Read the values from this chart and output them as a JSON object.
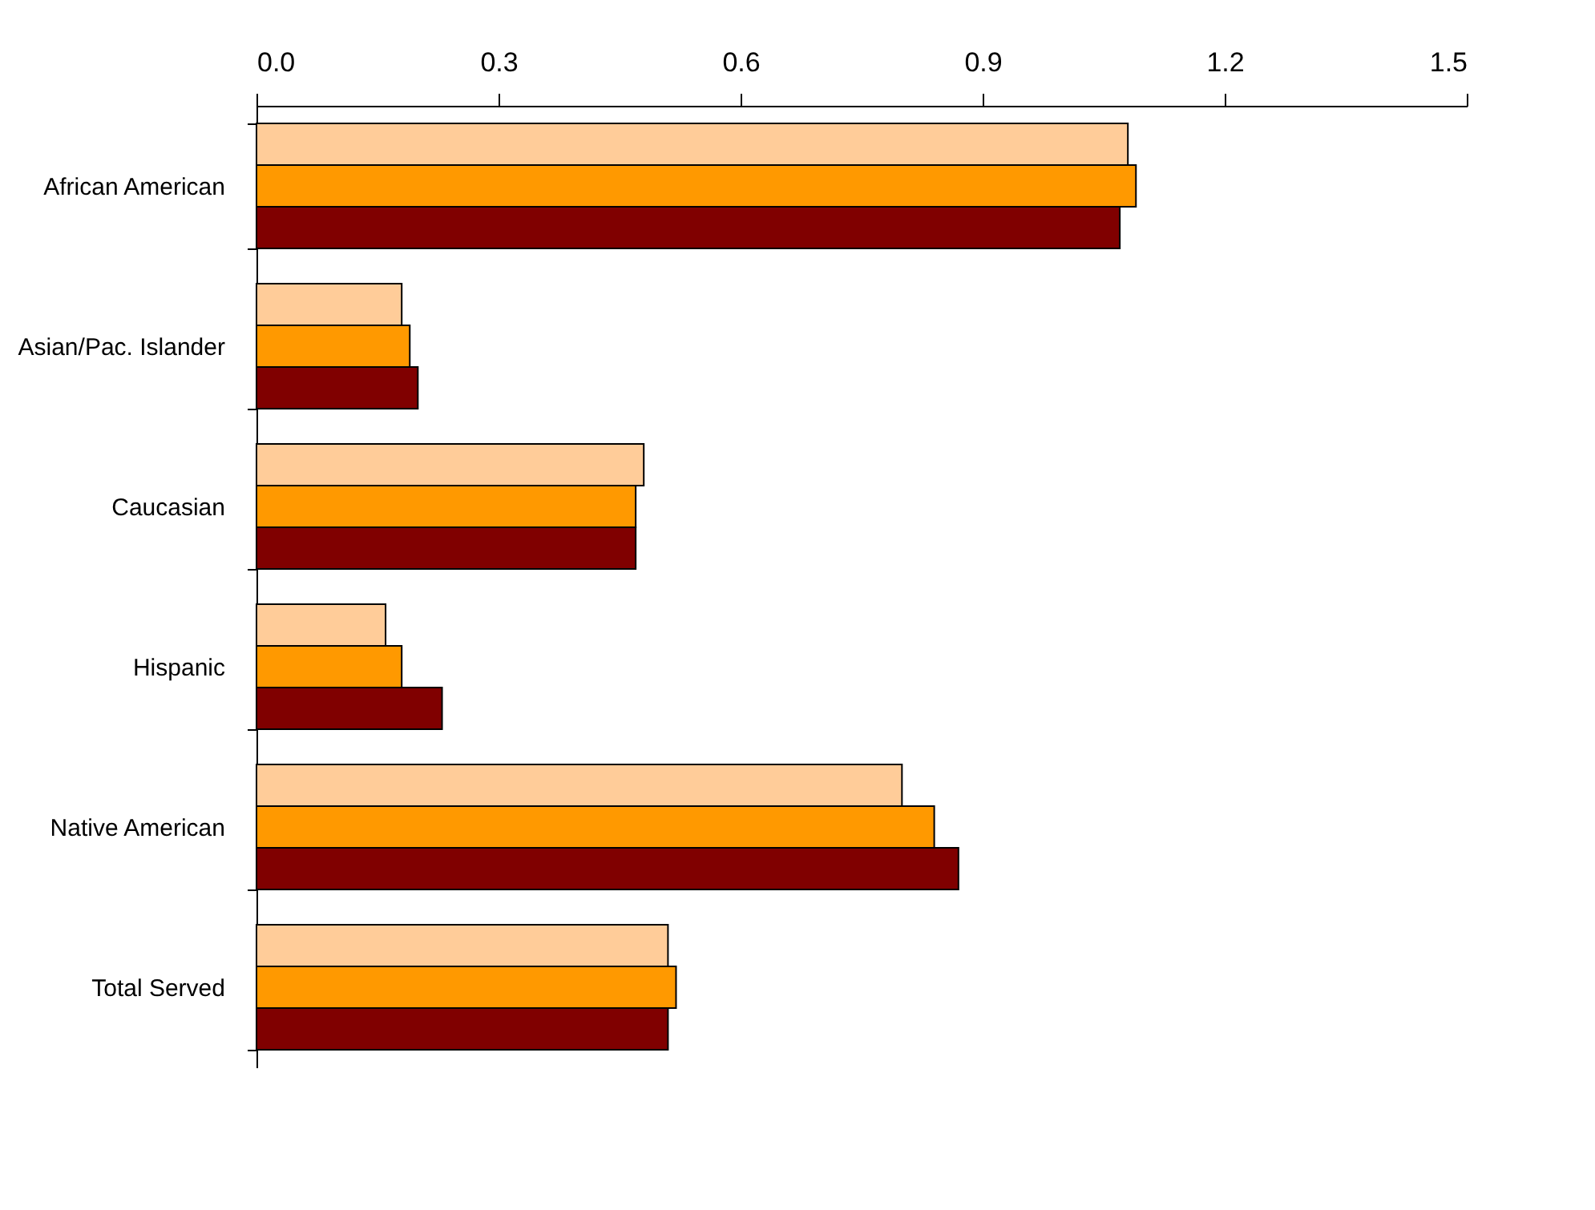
{
  "chart_data": {
    "type": "bar",
    "orientation": "horizontal",
    "categories": [
      "African American",
      "Asian/Pac. Islander",
      "Caucasian",
      "Hispanic",
      "Native American",
      "Total Served"
    ],
    "series": [
      {
        "color": "#ffcc99",
        "values": [
          1.08,
          0.18,
          0.48,
          0.16,
          0.8,
          0.51
        ]
      },
      {
        "color": "#ff9900",
        "values": [
          1.09,
          0.19,
          0.47,
          0.18,
          0.84,
          0.52
        ]
      },
      {
        "color": "#800000",
        "values": [
          1.07,
          0.2,
          0.47,
          0.23,
          0.87,
          0.51
        ]
      }
    ],
    "xlim": [
      0,
      1.5
    ],
    "xticks": [
      {
        "value": 0,
        "label": "0.0"
      },
      0.3,
      0.6,
      0.9,
      1.2,
      1.5
    ],
    "grid": false,
    "legend": false
  }
}
